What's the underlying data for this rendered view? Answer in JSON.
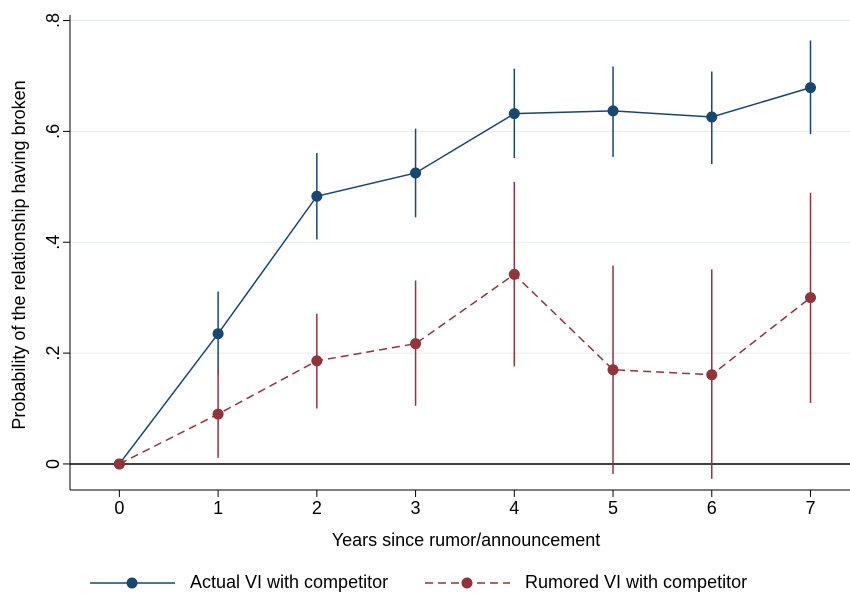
{
  "chart_data": {
    "type": "line",
    "x_label": "Years since rumor/announcement",
    "y_label": "Probability of the relationship having broken",
    "x": [
      0,
      1,
      2,
      3,
      4,
      5,
      6,
      7
    ],
    "series": [
      {
        "name": "Actual VI with competitor",
        "color": "#1a476f",
        "line_style": "solid",
        "values": [
          0,
          0.235,
          0.483,
          0.525,
          0.632,
          0.637,
          0.626,
          0.679
        ],
        "ci_lower": [
          0,
          0.161,
          0.405,
          0.445,
          0.552,
          0.554,
          0.541,
          0.595
        ],
        "ci_upper": [
          0,
          0.311,
          0.561,
          0.605,
          0.713,
          0.717,
          0.708,
          0.764
        ]
      },
      {
        "name": "Rumored VI with competitor",
        "color": "#90353b",
        "line_style": "dashed",
        "values": [
          0,
          0.09,
          0.186,
          0.217,
          0.342,
          0.17,
          0.161,
          0.3
        ],
        "ci_lower": [
          0,
          0.011,
          0.1,
          0.105,
          0.176,
          -0.018,
          -0.027,
          0.11
        ],
        "ci_upper": [
          0,
          0.17,
          0.271,
          0.331,
          0.509,
          0.358,
          0.351,
          0.489
        ]
      }
    ],
    "xlim": [
      -0.5,
      7.4
    ],
    "xticks": [
      0,
      1,
      2,
      3,
      4,
      5,
      6,
      7
    ],
    "ylim": [
      -0.047,
      0.81
    ],
    "yticks": [
      {
        "value": 0,
        "label": "0"
      },
      {
        "value": 0.2,
        "label": ".2"
      },
      {
        "value": 0.4,
        "label": ".4"
      },
      {
        "value": 0.6,
        "label": ".6"
      },
      {
        "value": 0.8,
        "label": ".8"
      }
    ],
    "yline": 0,
    "grid": true,
    "legend": "bottom"
  }
}
